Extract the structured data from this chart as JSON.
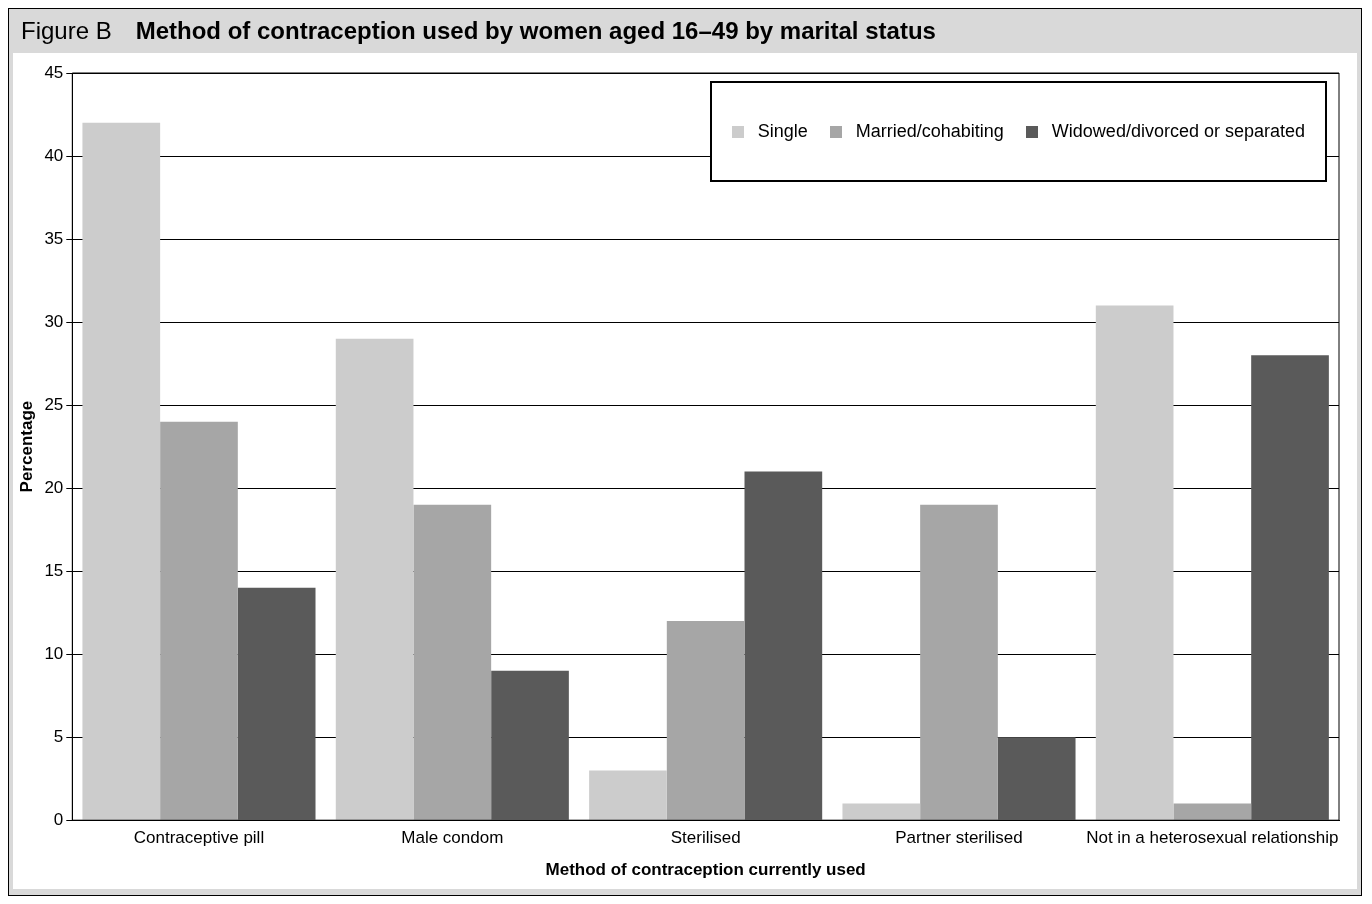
{
  "chart_data": {
    "type": "bar",
    "subtitle": "Figure B",
    "title": "Method of contraception used by women aged 16–49 by marital status",
    "xlabel": "Method of contraception currently used",
    "ylabel": "Percentage",
    "categories": [
      "Contraceptive pill",
      "Male condom",
      "Sterilised",
      "Partner sterilised",
      "Not in a heterosexual relationship"
    ],
    "series": [
      {
        "name": "Single",
        "color": "#cccccc",
        "values": [
          42,
          29,
          3,
          1,
          31
        ]
      },
      {
        "name": "Married/cohabiting",
        "color": "#a6a6a6",
        "values": [
          24,
          19,
          12,
          19,
          1
        ]
      },
      {
        "name": "Widowed/divorced or separated",
        "color": "#5a5a5a",
        "values": [
          14,
          9,
          21,
          5,
          28
        ]
      }
    ],
    "ylim": [
      0,
      45
    ],
    "yticks": [
      0,
      5,
      10,
      15,
      20,
      25,
      30,
      35,
      40,
      45
    ],
    "grid": "y",
    "legend": "top right"
  }
}
